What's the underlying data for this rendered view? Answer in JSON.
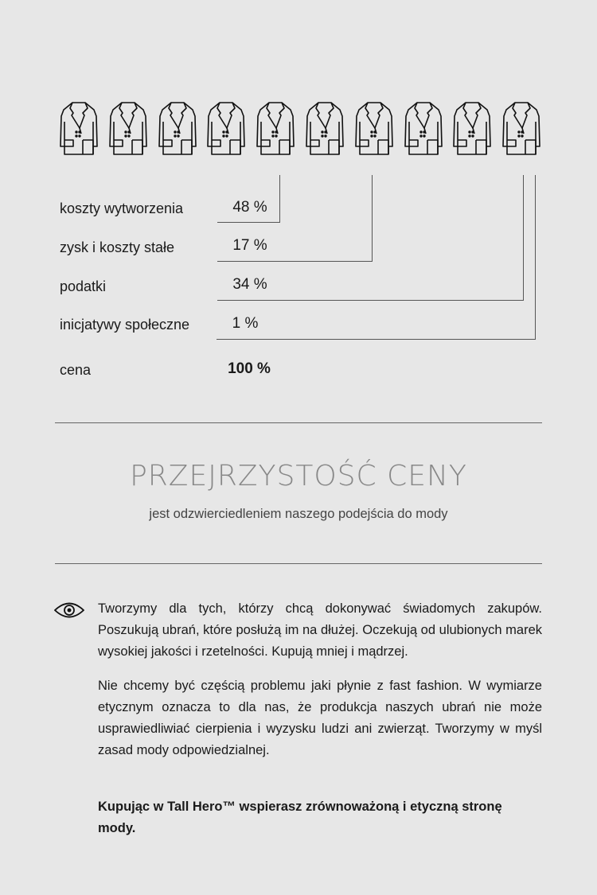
{
  "icons": {
    "coat": "coat-icon",
    "eye": "eye-icon"
  },
  "coat_count": 10,
  "breakdown": [
    {
      "label": "koszty wytworzenia",
      "value": "48 %"
    },
    {
      "label": "zysk i koszty stałe",
      "value": "17 %"
    },
    {
      "label": "podatki",
      "value": "34 %"
    },
    {
      "label": "inicjatywy społeczne",
      "value": "1 %"
    }
  ],
  "total": {
    "label": "cena",
    "value": "100 %"
  },
  "heading": {
    "title": "PRZEJRZYSTOŚĆ CENY",
    "subtitle": "jest odzwierciedleniem naszego podejścia do mody"
  },
  "paragraphs": [
    "Tworzymy dla tych, którzy chcą dokonywać świadomych zakupów. Poszukują ubrań, które posłużą im na dłużej. Oczekują od ulubionych marek wysokiej jakości i rzetelności. Kupują mniej i mądrzej.",
    "Nie chcemy być częścią problemu jaki płynie z fast fashion. W wymiarze etycznym oznacza to dla nas, że produkcja naszych ubrań nie może usprawiedliwiać cierpienia i wyzysku ludzi ani zwierząt. Tworzymy w myśl zasad mody odpowiedzialnej."
  ],
  "closing": "Kupując w Tall Hero™ wspierasz zrównoważoną i etyczną stronę mody."
}
